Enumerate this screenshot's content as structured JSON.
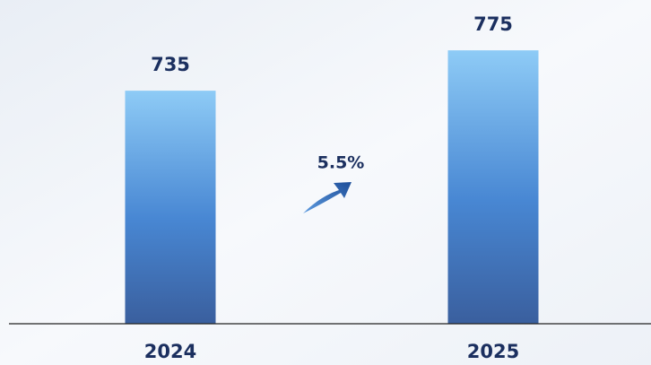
{
  "chart_data": {
    "type": "bar",
    "categories": [
      "2024",
      "2025"
    ],
    "values": [
      735,
      775
    ],
    "annotation": "5.5%",
    "ylim": [
      504,
      800
    ]
  }
}
